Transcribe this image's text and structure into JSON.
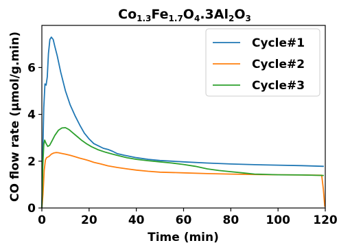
{
  "chart_data": {
    "type": "line",
    "title": {
      "main": "Co",
      "sub1": "1.3",
      "mid1": "Fe",
      "sub2": "1.7",
      "mid2": "O",
      "sub3": "4",
      "mid3": ".3Al",
      "sub4": "2",
      "mid4": "O",
      "sub5": "3"
    },
    "xlabel": "Time (min)",
    "ylabel": "CO flow rate (µmol/g.min)",
    "xlim": [
      0,
      120
    ],
    "ylim": [
      0,
      7.8
    ],
    "xticks": [
      "0",
      "20",
      "40",
      "60",
      "80",
      "100",
      "120"
    ],
    "yticks": [
      "0",
      "2",
      "4",
      "6"
    ],
    "grid": false,
    "legend_position": "top-right",
    "series": [
      {
        "name": "Cycle#1",
        "color": "#1f77b4",
        "points": [
          [
            0,
            0
          ],
          [
            0.4,
            2.4
          ],
          [
            0.8,
            4.3
          ],
          [
            1.3,
            5.3
          ],
          [
            1.8,
            5.25
          ],
          [
            2.3,
            5.6
          ],
          [
            2.8,
            6.6
          ],
          [
            3.4,
            7.2
          ],
          [
            4.0,
            7.3
          ],
          [
            4.8,
            7.2
          ],
          [
            5.5,
            6.9
          ],
          [
            6.5,
            6.5
          ],
          [
            8,
            5.8
          ],
          [
            10,
            5.0
          ],
          [
            12,
            4.4
          ],
          [
            14,
            3.95
          ],
          [
            16,
            3.55
          ],
          [
            18,
            3.2
          ],
          [
            20,
            2.95
          ],
          [
            22,
            2.75
          ],
          [
            24,
            2.65
          ],
          [
            26,
            2.55
          ],
          [
            28,
            2.5
          ],
          [
            30,
            2.42
          ],
          [
            32,
            2.32
          ],
          [
            35,
            2.25
          ],
          [
            40,
            2.15
          ],
          [
            45,
            2.08
          ],
          [
            50,
            2.03
          ],
          [
            60,
            1.97
          ],
          [
            70,
            1.92
          ],
          [
            80,
            1.88
          ],
          [
            90,
            1.85
          ],
          [
            100,
            1.83
          ],
          [
            110,
            1.81
          ],
          [
            119.4,
            1.78
          ]
        ]
      },
      {
        "name": "Cycle#2",
        "color": "#ff7f0e",
        "points": [
          [
            0,
            0
          ],
          [
            0.5,
            0.6
          ],
          [
            1,
            1.6
          ],
          [
            1.5,
            2.05
          ],
          [
            2,
            2.15
          ],
          [
            3,
            2.2
          ],
          [
            4,
            2.3
          ],
          [
            5,
            2.35
          ],
          [
            6,
            2.37
          ],
          [
            7,
            2.36
          ],
          [
            8,
            2.34
          ],
          [
            10,
            2.3
          ],
          [
            12,
            2.25
          ],
          [
            14,
            2.19
          ],
          [
            16,
            2.13
          ],
          [
            18,
            2.08
          ],
          [
            20,
            2.02
          ],
          [
            22,
            1.95
          ],
          [
            25,
            1.88
          ],
          [
            28,
            1.8
          ],
          [
            32,
            1.73
          ],
          [
            36,
            1.67
          ],
          [
            40,
            1.62
          ],
          [
            45,
            1.57
          ],
          [
            50,
            1.53
          ],
          [
            60,
            1.5
          ],
          [
            70,
            1.47
          ],
          [
            80,
            1.45
          ],
          [
            90,
            1.43
          ],
          [
            100,
            1.42
          ],
          [
            110,
            1.41
          ],
          [
            118.5,
            1.4
          ],
          [
            119.2,
            0.8
          ],
          [
            119.8,
            0.05
          ]
        ]
      },
      {
        "name": "Cycle#3",
        "color": "#2ca02c",
        "points": [
          [
            0,
            0
          ],
          [
            0.4,
            1.8
          ],
          [
            0.8,
            2.7
          ],
          [
            1.2,
            2.9
          ],
          [
            1.8,
            2.75
          ],
          [
            2.5,
            2.63
          ],
          [
            3.3,
            2.68
          ],
          [
            4.2,
            2.85
          ],
          [
            5.5,
            3.1
          ],
          [
            7,
            3.32
          ],
          [
            8.5,
            3.42
          ],
          [
            10,
            3.43
          ],
          [
            11.5,
            3.35
          ],
          [
            13,
            3.22
          ],
          [
            15,
            3.05
          ],
          [
            17,
            2.88
          ],
          [
            19,
            2.74
          ],
          [
            21,
            2.62
          ],
          [
            24,
            2.48
          ],
          [
            27,
            2.38
          ],
          [
            30,
            2.3
          ],
          [
            33,
            2.22
          ],
          [
            36,
            2.15
          ],
          [
            40,
            2.08
          ],
          [
            45,
            2.02
          ],
          [
            50,
            1.97
          ],
          [
            55,
            1.92
          ],
          [
            60,
            1.86
          ],
          [
            65,
            1.78
          ],
          [
            70,
            1.67
          ],
          [
            75,
            1.6
          ],
          [
            80,
            1.55
          ],
          [
            85,
            1.5
          ],
          [
            90,
            1.45
          ],
          [
            100,
            1.42
          ],
          [
            110,
            1.41
          ],
          [
            119.4,
            1.39
          ]
        ]
      }
    ]
  }
}
